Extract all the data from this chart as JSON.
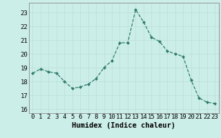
{
  "x": [
    0,
    1,
    2,
    3,
    4,
    5,
    6,
    7,
    8,
    9,
    10,
    11,
    12,
    13,
    14,
    15,
    16,
    17,
    18,
    19,
    20,
    21,
    22,
    23
  ],
  "y": [
    18.6,
    18.9,
    18.7,
    18.6,
    18.0,
    17.5,
    17.6,
    17.8,
    18.2,
    19.0,
    19.5,
    20.8,
    20.8,
    23.2,
    22.3,
    21.2,
    20.9,
    20.2,
    20.0,
    19.8,
    18.1,
    16.8,
    16.5,
    16.4
  ],
  "xlabel": "Humidex (Indice chaleur)",
  "ylim": [
    15.7,
    23.7
  ],
  "xlim": [
    -0.5,
    23.5
  ],
  "yticks": [
    16,
    17,
    18,
    19,
    20,
    21,
    22,
    23
  ],
  "xticks": [
    0,
    1,
    2,
    3,
    4,
    5,
    6,
    7,
    8,
    9,
    10,
    11,
    12,
    13,
    14,
    15,
    16,
    17,
    18,
    19,
    20,
    21,
    22,
    23
  ],
  "line_color": "#2d7a6b",
  "marker_color": "#2d7a6b",
  "bg_color": "#cceee8",
  "grid_major_color": "#b8ddd8",
  "grid_minor_color": "#d4eeea",
  "axis_color": "#888888",
  "tick_label_fontsize": 6.5,
  "xlabel_fontsize": 7.5
}
